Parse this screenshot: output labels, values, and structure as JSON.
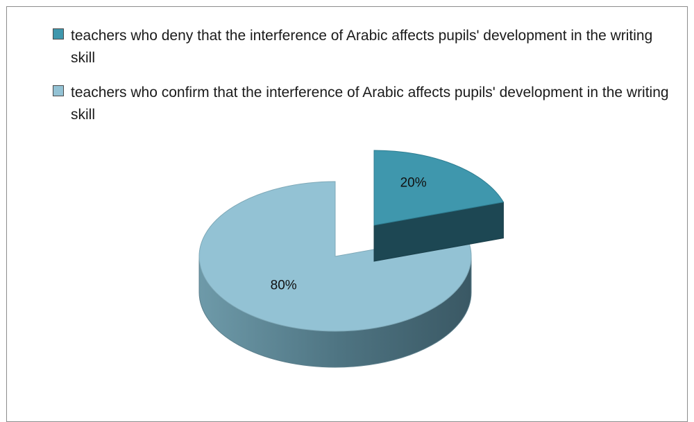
{
  "chart_data": {
    "type": "pie",
    "title": "",
    "legend_placement": "top",
    "slices": [
      {
        "label": "teachers who deny that the interference of Arabic affects pupils' development in the writing skill",
        "value": 20,
        "display": "20%",
        "color": "#3f97ad",
        "exploded": true
      },
      {
        "label": "teachers who confirm that the interference of Arabic affects pupils' development in the writing skill",
        "value": 80,
        "display": "80%",
        "color": "#93c2d4",
        "exploded": false
      }
    ]
  }
}
